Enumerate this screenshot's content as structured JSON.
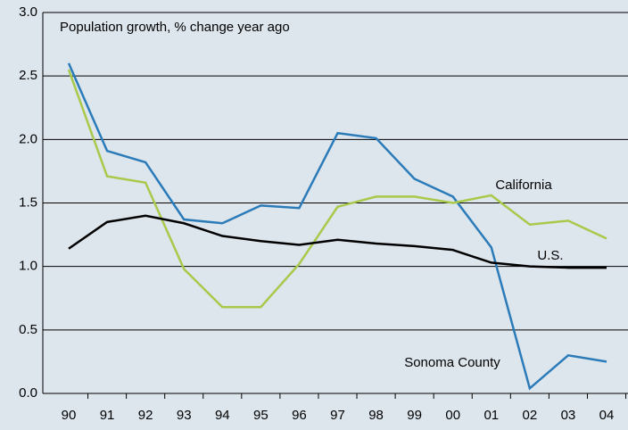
{
  "chart_data": {
    "type": "line",
    "title": "Population growth, % change year ago",
    "categories": [
      "90",
      "91",
      "92",
      "93",
      "94",
      "95",
      "96",
      "97",
      "98",
      "99",
      "00",
      "01",
      "02",
      "03",
      "04"
    ],
    "series": [
      {
        "name": "Sonoma County",
        "color": "#2b7bb9",
        "values": [
          2.6,
          1.91,
          1.82,
          1.37,
          1.34,
          1.48,
          1.46,
          2.05,
          2.01,
          1.69,
          1.55,
          1.15,
          0.04,
          0.3,
          0.25
        ]
      },
      {
        "name": "California",
        "color": "#a9c94b",
        "values": [
          2.55,
          1.71,
          1.66,
          0.98,
          0.68,
          0.68,
          1.02,
          1.47,
          1.55,
          1.55,
          1.5,
          1.56,
          1.33,
          1.36,
          1.22
        ]
      },
      {
        "name": "U.S.",
        "color": "#000000",
        "values": [
          1.14,
          1.35,
          1.4,
          1.34,
          1.24,
          1.2,
          1.17,
          1.21,
          1.18,
          1.16,
          1.13,
          1.03,
          1.0,
          0.99,
          0.99
        ]
      }
    ],
    "ylim": [
      0,
      3
    ],
    "yticks": [
      {
        "value": 0,
        "label": "0.0"
      },
      0.5,
      {
        "value": 1,
        "label": "1.0"
      },
      1.5,
      {
        "value": 2,
        "label": "2.0"
      },
      2.5,
      {
        "value": 3,
        "label": "3.0"
      }
    ],
    "grid": true
  }
}
